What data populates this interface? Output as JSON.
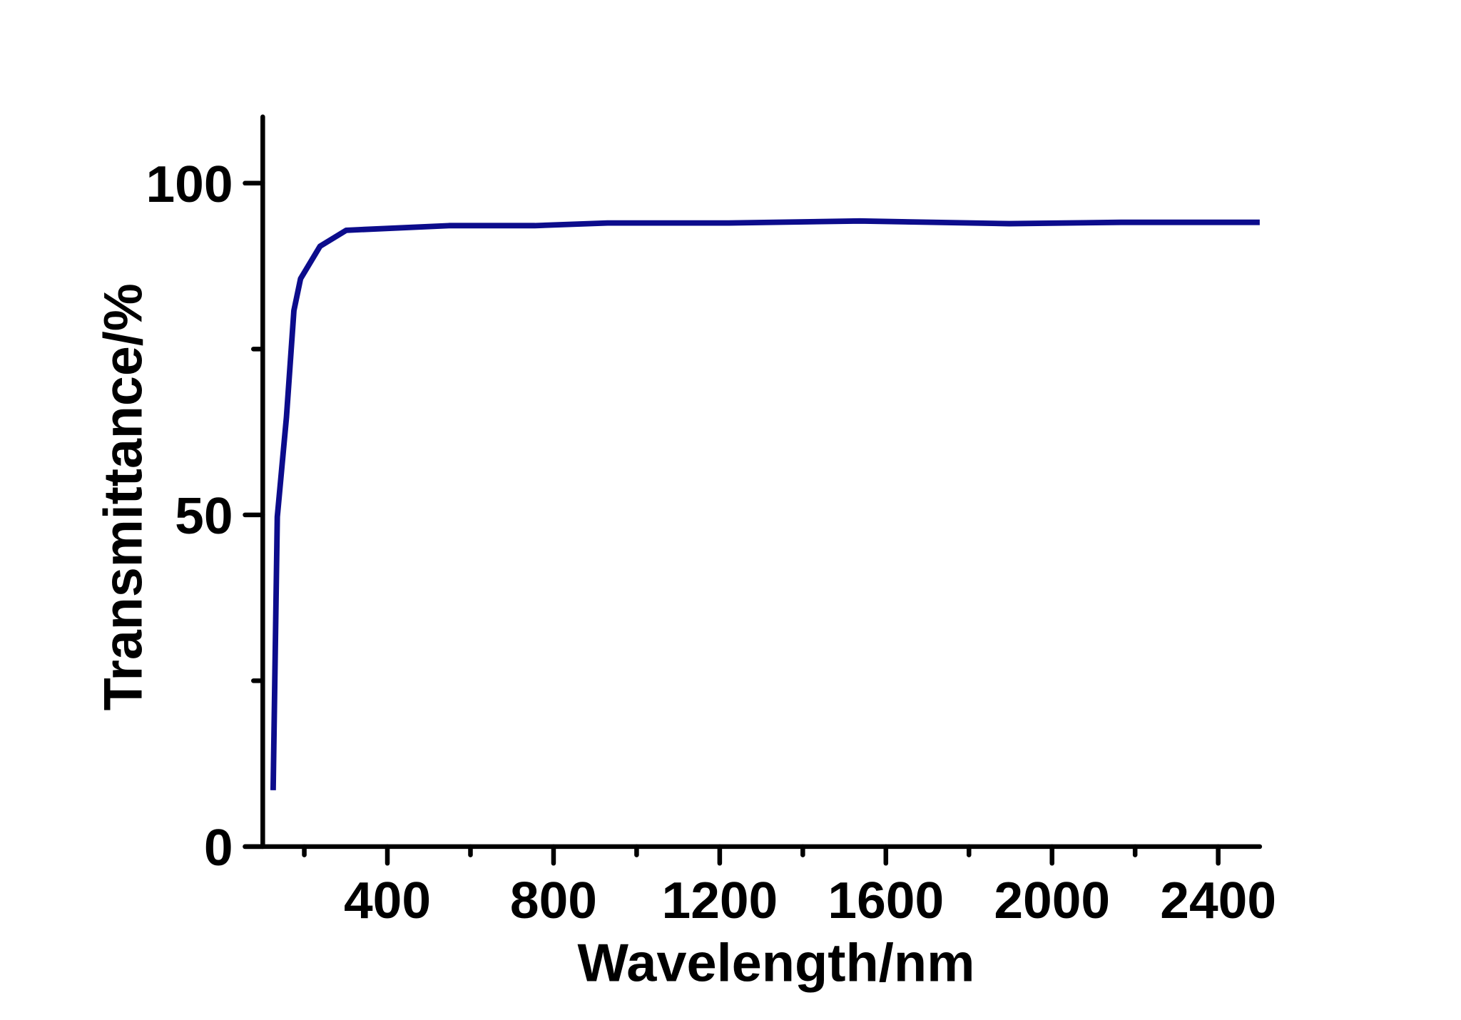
{
  "chart_data": {
    "type": "line",
    "x_label": "Wavelength/nm",
    "y_label": "Transmittance/%",
    "x": [
      125,
      135,
      157,
      175,
      191,
      238,
      301,
      548,
      755,
      930,
      1222,
      1537,
      1897,
      2166,
      2500
    ],
    "series": [
      {
        "color": "#0c0c8c",
        "values": [
          8.5,
          49.7,
          64.7,
          80.8,
          85.6,
          90.5,
          92.9,
          93.6,
          93.6,
          94.0,
          94.0,
          94.3,
          93.9,
          94.1,
          94.1
        ]
      }
    ],
    "xlim": [
      100,
      2500
    ],
    "ylim": [
      0,
      110
    ],
    "xticks": [
      400,
      800,
      1200,
      1600,
      2000,
      2400
    ],
    "xminorticks": [
      200,
      600,
      1000,
      1400,
      1800,
      2200
    ],
    "yticks": [
      0,
      50,
      100
    ],
    "yminorticks": [
      25,
      75
    ]
  }
}
